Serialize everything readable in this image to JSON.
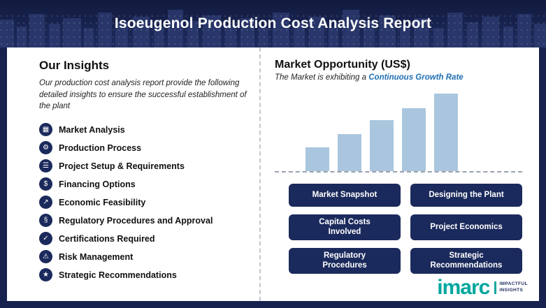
{
  "banner": {
    "title": "Isoeugenol Production Cost Analysis Report"
  },
  "insights": {
    "heading": "Our Insights",
    "description": "Our production cost analysis report provide the following detailed insights to ensure the successful establishment of the plant",
    "items": [
      {
        "label": "Market Analysis",
        "glyph": "▦"
      },
      {
        "label": "Production Process",
        "glyph": "⚙"
      },
      {
        "label": "Project Setup & Requirements",
        "glyph": "☰"
      },
      {
        "label": "Financing Options",
        "glyph": "$"
      },
      {
        "label": "Economic Feasibility",
        "glyph": "↗"
      },
      {
        "label": "Regulatory Procedures and Approval",
        "glyph": "§"
      },
      {
        "label": "Certifications Required",
        "glyph": "✓"
      },
      {
        "label": "Risk Management",
        "glyph": "⚠"
      },
      {
        "label": "Strategic Recommendations",
        "glyph": "★"
      }
    ]
  },
  "market": {
    "heading": "Market Opportunity (US$)",
    "subtitle_prefix": "The Market is exhibiting a ",
    "subtitle_highlight": "Continuous Growth Rate"
  },
  "chart_data": {
    "type": "bar",
    "categories": [
      "",
      "",
      "",
      "",
      ""
    ],
    "values": [
      34,
      53,
      73,
      90,
      111
    ],
    "title": "Market Opportunity (US$)",
    "xlabel": "",
    "ylabel": "",
    "note": "unlabeled increasing bars indicating continuous growth; values are relative heights",
    "bar_color": "#a9c6de",
    "grid": false,
    "legend": false
  },
  "buttons": [
    "Market Snapshot",
    "Designing the Plant",
    "Capital Costs\nInvolved",
    "Project Economics",
    "Regulatory\nProcedures",
    "Strategic\nRecommendations"
  ],
  "logo": {
    "wordmark": "imarc",
    "tagline_line1": "IMPACTFUL",
    "tagline_line2": "INSIGHTS"
  },
  "colors": {
    "navy": "#1b2a5c",
    "banner_navy": "#17224e",
    "bar_blue": "#a9c6de",
    "accent_blue": "#2070b4",
    "logo_teal": "#00a79d"
  }
}
